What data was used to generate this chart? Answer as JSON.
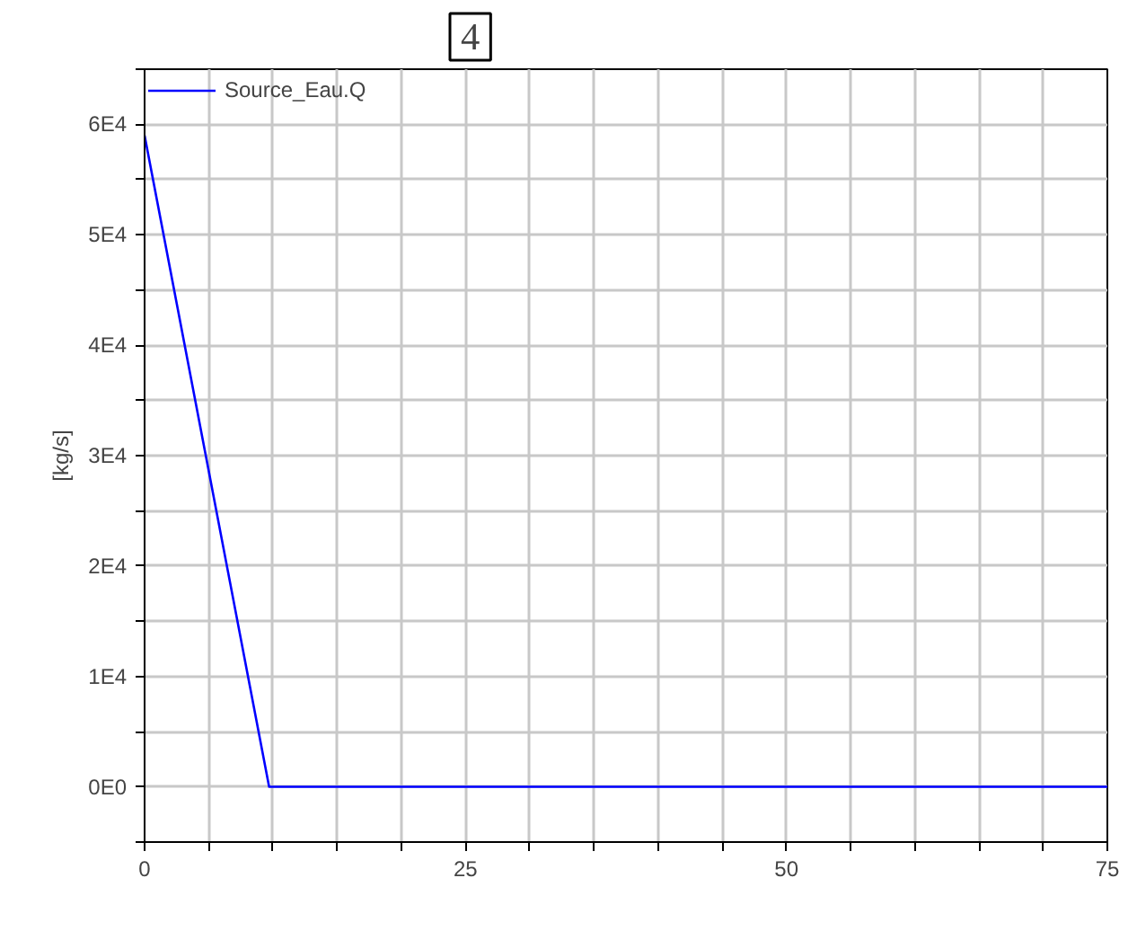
{
  "chart_data": {
    "type": "line",
    "ylabel": "[kg/s]",
    "x": [
      0,
      9.7,
      75
    ],
    "series": [
      {
        "name": "Source_Eau.Q",
        "color": "#0000ff",
        "values": [
          59000,
          0,
          0
        ]
      }
    ],
    "xlim": [
      0,
      75
    ],
    "ylim": [
      -5000,
      65000
    ],
    "xticks": [
      0,
      {
        "value": 5,
        "label": null
      },
      {
        "value": 10,
        "label": null
      },
      {
        "value": 15,
        "label": null
      },
      {
        "value": 20,
        "label": null
      },
      25,
      {
        "value": 30,
        "label": null
      },
      {
        "value": 35,
        "label": null
      },
      {
        "value": 40,
        "label": null
      },
      {
        "value": 45,
        "label": null
      },
      50,
      {
        "value": 55,
        "label": null
      },
      {
        "value": 60,
        "label": null
      },
      {
        "value": 65,
        "label": null
      },
      {
        "value": 70,
        "label": null
      },
      75
    ],
    "yticks": [
      {
        "value": -5000,
        "label": null
      },
      {
        "value": 0,
        "label": "0E0"
      },
      {
        "value": 5000,
        "label": null
      },
      {
        "value": 10000,
        "label": "1E4"
      },
      {
        "value": 15000,
        "label": null
      },
      {
        "value": 20000,
        "label": "2E4"
      },
      {
        "value": 25000,
        "label": null
      },
      {
        "value": 30000,
        "label": "3E4"
      },
      {
        "value": 35000,
        "label": null
      },
      {
        "value": 40000,
        "label": "4E4"
      },
      {
        "value": 45000,
        "label": null
      },
      {
        "value": 50000,
        "label": "5E4"
      },
      {
        "value": 55000,
        "label": null
      },
      {
        "value": 60000,
        "label": "6E4"
      },
      {
        "value": 65000,
        "label": null
      }
    ],
    "grid": true,
    "legend": "top left",
    "line_style": "solid",
    "marker": "none",
    "annotations": [
      "4"
    ]
  }
}
